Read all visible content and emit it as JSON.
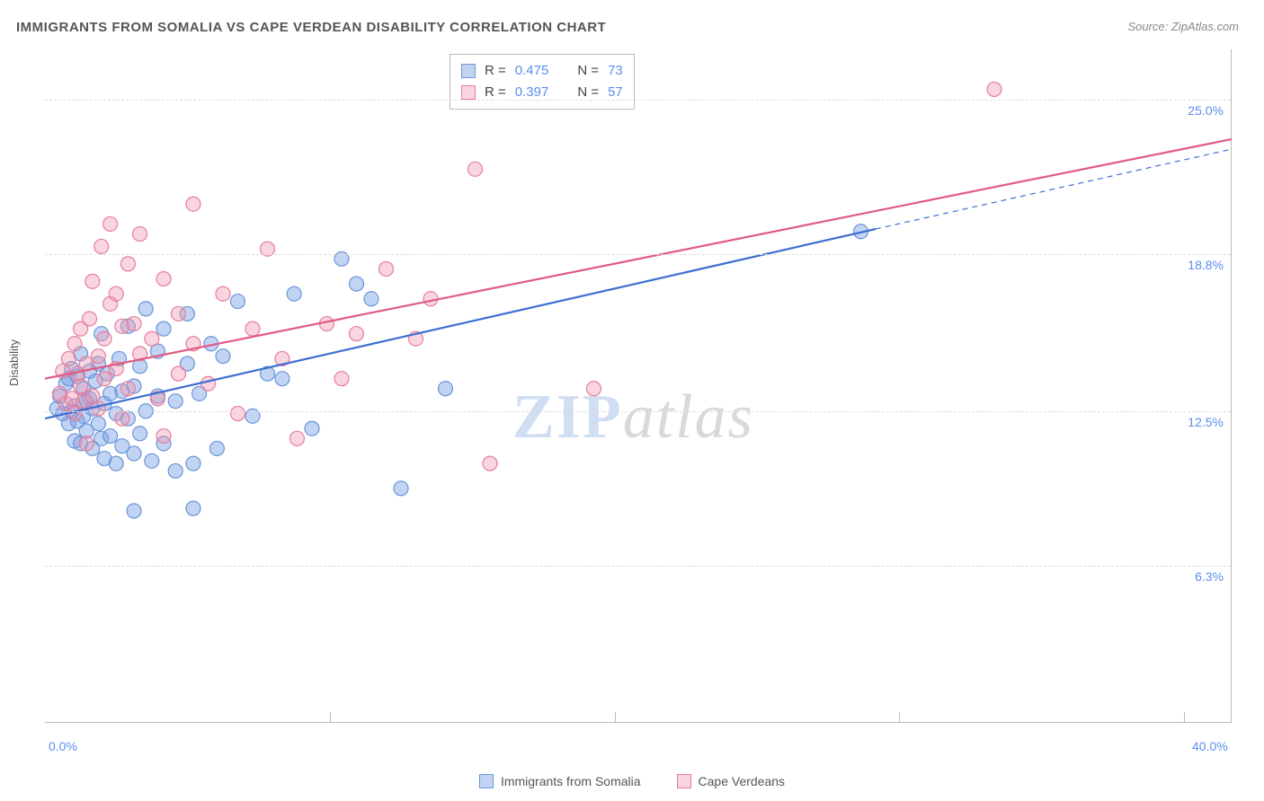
{
  "title": "IMMIGRANTS FROM SOMALIA VS CAPE VERDEAN DISABILITY CORRELATION CHART",
  "source": "Source: ZipAtlas.com",
  "y_axis_label": "Disability",
  "watermark": {
    "part1": "ZIP",
    "part2": "atlas"
  },
  "chart": {
    "type": "scatter",
    "background_color": "#ffffff",
    "grid_color": "#dddddd",
    "axis_color": "#bbbbbb",
    "label_color": "#5b8def",
    "title_color": "#555555",
    "xlim": [
      0,
      40
    ],
    "ylim": [
      0,
      27
    ],
    "y_ticks": [
      {
        "value": 6.3,
        "label": "6.3%"
      },
      {
        "value": 12.5,
        "label": "12.5%"
      },
      {
        "value": 18.8,
        "label": "18.8%"
      },
      {
        "value": 25.0,
        "label": "25.0%"
      }
    ],
    "x_ticks": [
      {
        "value": 0,
        "label": "0.0%"
      },
      {
        "value": 40,
        "label": "40.0%"
      }
    ],
    "x_grid_positions": [
      9.6,
      19.2,
      28.8,
      38.4
    ],
    "marker_radius": 8,
    "marker_stroke_width": 1.2,
    "trend_line_width": 2.2,
    "series": [
      {
        "name": "Immigrants from Somalia",
        "fill_color": "rgba(120,160,230,0.45)",
        "stroke_color": "#6b95d8",
        "line_color": "#3c6fd1",
        "R": "0.475",
        "N": "73",
        "trend": {
          "x1": 0,
          "y1": 12.2,
          "x2": 28,
          "y2": 19.8,
          "x2_ext": 40,
          "y2_ext": 23.0
        },
        "points": [
          [
            0.4,
            12.6
          ],
          [
            0.5,
            13.1
          ],
          [
            0.6,
            12.4
          ],
          [
            0.7,
            13.6
          ],
          [
            0.8,
            12.0
          ],
          [
            0.8,
            13.8
          ],
          [
            0.9,
            12.5
          ],
          [
            0.9,
            14.2
          ],
          [
            1.0,
            11.3
          ],
          [
            1.0,
            12.7
          ],
          [
            1.1,
            13.9
          ],
          [
            1.1,
            12.1
          ],
          [
            1.2,
            11.2
          ],
          [
            1.2,
            14.8
          ],
          [
            1.3,
            12.3
          ],
          [
            1.3,
            13.4
          ],
          [
            1.4,
            11.7
          ],
          [
            1.4,
            12.9
          ],
          [
            1.5,
            14.1
          ],
          [
            1.5,
            13.0
          ],
          [
            1.6,
            12.6
          ],
          [
            1.6,
            11.0
          ],
          [
            1.7,
            13.7
          ],
          [
            1.8,
            12.0
          ],
          [
            1.8,
            14.4
          ],
          [
            1.9,
            11.4
          ],
          [
            1.9,
            15.6
          ],
          [
            2.0,
            12.8
          ],
          [
            2.0,
            10.6
          ],
          [
            2.1,
            14.0
          ],
          [
            2.2,
            11.5
          ],
          [
            2.2,
            13.2
          ],
          [
            2.4,
            12.4
          ],
          [
            2.4,
            10.4
          ],
          [
            2.5,
            14.6
          ],
          [
            2.6,
            13.3
          ],
          [
            2.6,
            11.1
          ],
          [
            2.8,
            12.2
          ],
          [
            2.8,
            15.9
          ],
          [
            3.0,
            13.5
          ],
          [
            3.0,
            10.8
          ],
          [
            3.0,
            8.5
          ],
          [
            3.2,
            14.3
          ],
          [
            3.2,
            11.6
          ],
          [
            3.4,
            12.5
          ],
          [
            3.4,
            16.6
          ],
          [
            3.6,
            10.5
          ],
          [
            3.8,
            14.9
          ],
          [
            3.8,
            13.1
          ],
          [
            4.0,
            11.2
          ],
          [
            4.0,
            15.8
          ],
          [
            4.4,
            12.9
          ],
          [
            4.4,
            10.1
          ],
          [
            4.8,
            14.4
          ],
          [
            4.8,
            16.4
          ],
          [
            5.0,
            10.4
          ],
          [
            5.0,
            8.6
          ],
          [
            5.2,
            13.2
          ],
          [
            5.6,
            15.2
          ],
          [
            5.8,
            11.0
          ],
          [
            6.0,
            14.7
          ],
          [
            6.5,
            16.9
          ],
          [
            7.0,
            12.3
          ],
          [
            7.5,
            14.0
          ],
          [
            8.0,
            13.8
          ],
          [
            8.4,
            17.2
          ],
          [
            9.0,
            11.8
          ],
          [
            10.0,
            18.6
          ],
          [
            10.5,
            17.6
          ],
          [
            11.0,
            17.0
          ],
          [
            12.0,
            9.4
          ],
          [
            13.5,
            13.4
          ],
          [
            27.5,
            19.7
          ]
        ]
      },
      {
        "name": "Cape Verdeans",
        "fill_color": "rgba(240,150,175,0.4)",
        "stroke_color": "#e67d9b",
        "line_color": "#e15a82",
        "R": "0.397",
        "N": "57",
        "trend": {
          "x1": 0,
          "y1": 13.8,
          "x2": 40,
          "y2": 23.4,
          "x2_ext": 40,
          "y2_ext": 23.4
        },
        "points": [
          [
            0.5,
            13.2
          ],
          [
            0.6,
            14.1
          ],
          [
            0.7,
            12.8
          ],
          [
            0.8,
            14.6
          ],
          [
            0.9,
            13.0
          ],
          [
            1.0,
            15.2
          ],
          [
            1.0,
            12.4
          ],
          [
            1.1,
            14.0
          ],
          [
            1.2,
            13.5
          ],
          [
            1.2,
            15.8
          ],
          [
            1.3,
            12.9
          ],
          [
            1.4,
            14.4
          ],
          [
            1.4,
            11.2
          ],
          [
            1.5,
            16.2
          ],
          [
            1.6,
            13.1
          ],
          [
            1.6,
            17.7
          ],
          [
            1.8,
            14.7
          ],
          [
            1.8,
            12.6
          ],
          [
            1.9,
            19.1
          ],
          [
            2.0,
            15.4
          ],
          [
            2.0,
            13.8
          ],
          [
            2.2,
            20.0
          ],
          [
            2.2,
            16.8
          ],
          [
            2.4,
            14.2
          ],
          [
            2.4,
            17.2
          ],
          [
            2.6,
            12.2
          ],
          [
            2.6,
            15.9
          ],
          [
            2.8,
            18.4
          ],
          [
            2.8,
            13.4
          ],
          [
            3.0,
            16.0
          ],
          [
            3.2,
            14.8
          ],
          [
            3.2,
            19.6
          ],
          [
            3.6,
            15.4
          ],
          [
            3.8,
            13.0
          ],
          [
            4.0,
            17.8
          ],
          [
            4.0,
            11.5
          ],
          [
            4.5,
            16.4
          ],
          [
            4.5,
            14.0
          ],
          [
            5.0,
            20.8
          ],
          [
            5.0,
            15.2
          ],
          [
            5.5,
            13.6
          ],
          [
            6.0,
            17.2
          ],
          [
            6.5,
            12.4
          ],
          [
            7.0,
            15.8
          ],
          [
            7.5,
            19.0
          ],
          [
            8.0,
            14.6
          ],
          [
            8.5,
            11.4
          ],
          [
            9.5,
            16.0
          ],
          [
            10.0,
            13.8
          ],
          [
            10.5,
            15.6
          ],
          [
            11.5,
            18.2
          ],
          [
            12.5,
            15.4
          ],
          [
            13.0,
            17.0
          ],
          [
            14.5,
            22.2
          ],
          [
            15.0,
            10.4
          ],
          [
            18.5,
            13.4
          ],
          [
            32.0,
            25.4
          ]
        ]
      }
    ]
  },
  "legend_bottom": [
    {
      "label": "Immigrants from Somalia",
      "fill": "rgba(120,160,230,0.45)",
      "stroke": "#6b95d8"
    },
    {
      "label": "Cape Verdeans",
      "fill": "rgba(240,150,175,0.4)",
      "stroke": "#e67d9b"
    }
  ]
}
